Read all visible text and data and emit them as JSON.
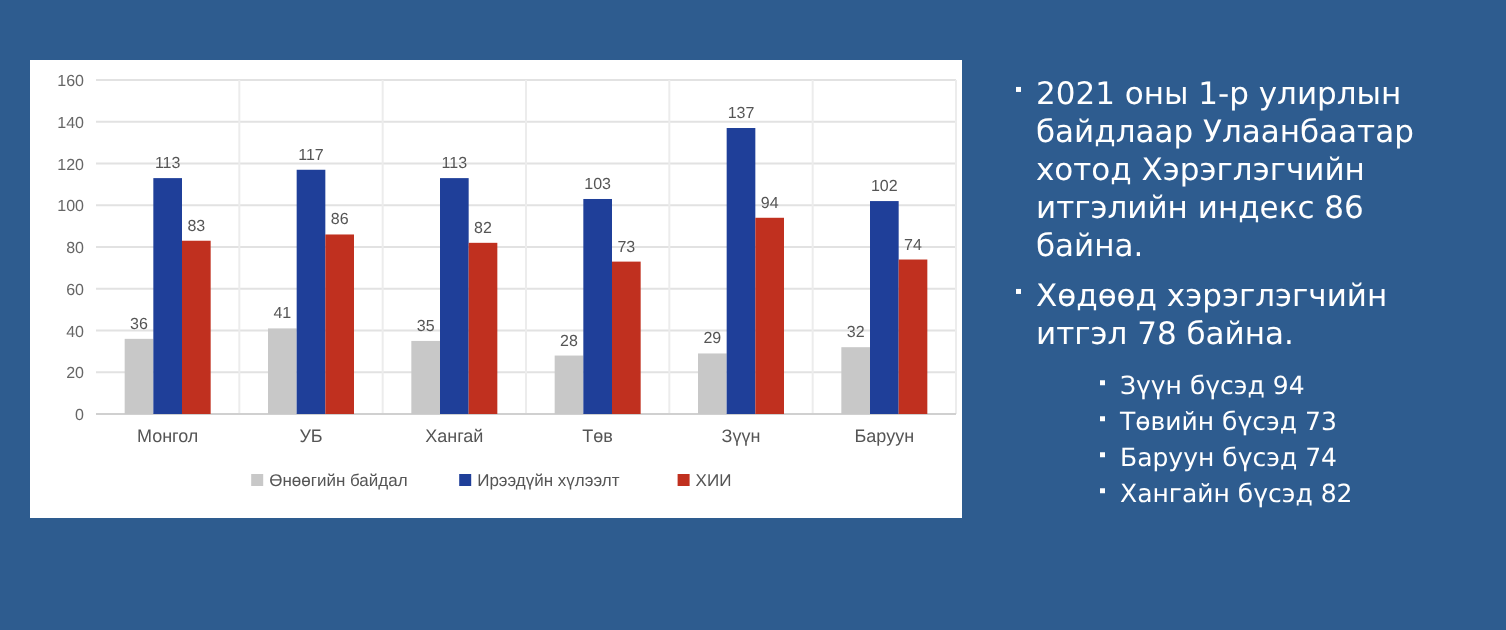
{
  "chart_data": {
    "type": "bar",
    "categories": [
      "Монгол",
      "УБ",
      "Хангай",
      "Төв",
      "Зүүн",
      "Баруун"
    ],
    "series": [
      {
        "name": "Өнөөгийн байдал",
        "color": "#c8c8c8",
        "values": [
          36,
          41,
          35,
          28,
          29,
          32
        ]
      },
      {
        "name": "Ирээдүйн хүлээлт",
        "color": "#1f3f99",
        "values": [
          113,
          117,
          113,
          103,
          137,
          102
        ]
      },
      {
        "name": "ХИИ",
        "color": "#c0301f",
        "values": [
          83,
          86,
          82,
          73,
          94,
          74
        ]
      }
    ],
    "ylim": [
      0,
      160
    ],
    "yticks": [
      0,
      20,
      40,
      60,
      80,
      100,
      120,
      140,
      160
    ],
    "grid": true,
    "legend": "bottom",
    "data_labels": true,
    "annotations": [
      "2021 оны 1-р улирлын байдлаар Улаанбаатар хотод Хэрэглэгчийн итгэлийн индекс 86 байна.",
      "Хөдөөд хэрэглэгчийн итгэл 78 байна.",
      "Зүүн бүсэд 94",
      "Төвийн бүсэд 73",
      "Баруун бүсэд 74",
      "Хангайн бүсэд 82"
    ]
  }
}
